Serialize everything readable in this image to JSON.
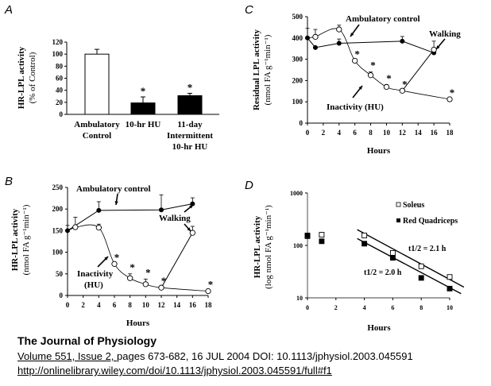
{
  "chart_data": [
    {
      "panel": "A",
      "type": "bar",
      "ylabel": "HR-LPL activity",
      "ylabel2": "(% of Control)",
      "ylim": [
        0,
        120
      ],
      "yticks": [
        0,
        20,
        40,
        60,
        80,
        100,
        120
      ],
      "categories": [
        {
          "lines": [
            "Ambulatory",
            "Control"
          ]
        },
        {
          "lines": [
            "10-hr HU"
          ]
        },
        {
          "lines": [
            "11-day",
            "Intermittent",
            "10-hr HU"
          ]
        }
      ],
      "values": [
        100,
        19,
        31
      ],
      "errors": [
        8,
        10,
        4
      ],
      "fills": [
        "#ffffff",
        "#000000",
        "#000000"
      ],
      "significant": [
        false,
        true,
        true
      ]
    },
    {
      "panel": "C",
      "type": "line",
      "ylabel": "Residual LPL activity",
      "ylabel2": "(nmol FA g⁻¹min⁻¹)",
      "xlabel": "Hours",
      "xlim": [
        0,
        18
      ],
      "ylim": [
        0,
        500
      ],
      "xticks": [
        0,
        2,
        4,
        6,
        8,
        10,
        12,
        14,
        16,
        18
      ],
      "yticks": [
        0,
        100,
        200,
        300,
        400,
        500
      ],
      "series": [
        {
          "name": "Ambulatory control",
          "marker": "filled-circle",
          "x": [
            0,
            1,
            4,
            12,
            16
          ],
          "y": [
            400,
            355,
            375,
            385,
            330
          ],
          "err": [
            45,
            0,
            20,
            22,
            0
          ]
        },
        {
          "name": "Inactivity (HU)",
          "marker": "open-circle",
          "x": [
            1,
            4,
            6,
            8,
            10,
            12,
            18
          ],
          "y": [
            405,
            440,
            293,
            225,
            170,
            152,
            112
          ],
          "err": [
            35,
            20,
            0,
            15,
            10,
            0,
            0
          ],
          "significant_x": [
            6,
            8,
            10,
            12,
            18
          ]
        },
        {
          "name": "Walking",
          "marker": "open-circle",
          "x": [
            12,
            16
          ],
          "y": [
            152,
            345
          ],
          "err": [
            0,
            40
          ]
        }
      ],
      "annotations": [
        "Ambulatory control",
        "Inactivity (HU)",
        "Walking"
      ]
    },
    {
      "panel": "B",
      "type": "line",
      "ylabel": "HR-LPL activity",
      "ylabel2": "(nmol FA g⁻¹min⁻¹)",
      "xlabel": "Hours",
      "xlim": [
        0,
        18
      ],
      "ylim": [
        0,
        250
      ],
      "xticks": [
        0,
        2,
        4,
        6,
        8,
        10,
        12,
        14,
        16,
        18
      ],
      "yticks": [
        0,
        50,
        100,
        150,
        200,
        250
      ],
      "series": [
        {
          "name": "Ambulatory control",
          "marker": "filled-circle",
          "x": [
            0,
            4,
            12,
            16
          ],
          "y": [
            150,
            197,
            198,
            212
          ],
          "err": [
            12,
            20,
            35,
            14
          ]
        },
        {
          "name": "Inactivity (HU)",
          "marker": "open-circle",
          "x": [
            1,
            4,
            6,
            8,
            10,
            12,
            18
          ],
          "y": [
            158,
            157,
            73,
            40,
            26,
            18,
            10
          ],
          "err": [
            23,
            8,
            0,
            10,
            12,
            0,
            0
          ],
          "significant_x": [
            6,
            8,
            10,
            12,
            18
          ]
        },
        {
          "name": "Walking",
          "marker": "open-circle",
          "x": [
            12,
            16
          ],
          "y": [
            18,
            145
          ],
          "err": [
            0,
            15
          ]
        }
      ],
      "annotations": [
        "Ambulatory control",
        "Inactivity",
        "(HU)",
        "Walking"
      ]
    },
    {
      "panel": "D",
      "type": "scatter",
      "ylabel": "HR-LPL activity",
      "ylabel2": "(log nmol FA g⁻¹min⁻¹)",
      "xlabel": "Hours",
      "xlim": [
        0,
        10
      ],
      "ylim": [
        10,
        1000
      ],
      "yscale": "log",
      "xticks": [
        0,
        2,
        4,
        6,
        8,
        10
      ],
      "yticks": [
        10,
        100,
        1000
      ],
      "legend_position": "top-right",
      "series": [
        {
          "name": "Soleus",
          "marker": "open-square",
          "x": [
            0,
            1,
            4,
            6,
            8,
            10
          ],
          "y": [
            150,
            160,
            155,
            72,
            40,
            25
          ],
          "fit": {
            "x": [
              3.5,
              11
            ],
            "y": [
              200,
              16
            ],
            "label": "t1/2 = 2.1 h"
          }
        },
        {
          "name": "Red Quadriceps",
          "marker": "filled-square",
          "x": [
            0,
            1,
            4,
            6,
            8,
            10
          ],
          "y": [
            155,
            120,
            108,
            58,
            24,
            15
          ],
          "fit": {
            "x": [
              3.5,
              10.8
            ],
            "y": [
              135,
              12
            ],
            "label": "t1/2 = 2.0 h"
          }
        }
      ]
    }
  ],
  "panels": {
    "A": {
      "letter": "A"
    },
    "B": {
      "letter": "B"
    },
    "C": {
      "letter": "C"
    },
    "D": {
      "letter": "D"
    }
  },
  "footer": {
    "journal": "The Journal of Physiology",
    "citation": "Volume 551, Issue 2, pages 673-682, 16 JUL 2004 DOI: 10.1113/jphysiol.2003.045591",
    "citation_link": "Volume 551, Issue 2, ",
    "citation_rest": "pages 673-682, 16 JUL 2004 DOI: 10.1113/jphysiol.2003.045591",
    "url": "http://onlinelibrary.wiley.com/doi/10.1113/jphysiol.2003.045591/full#f1"
  }
}
